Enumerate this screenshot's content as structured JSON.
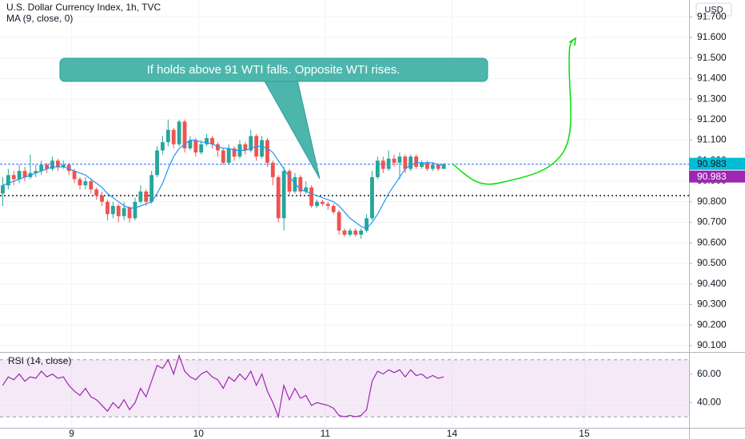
{
  "chart_data": {
    "type": "candlestick",
    "title": "U.S. Dollar Currency Index, 1h, TVC",
    "currency": "USD",
    "up_color": "#26a69a",
    "down_color": "#ef5350",
    "x": [
      0.5,
      1.5,
      2.5,
      3.5,
      4.5,
      5.5,
      6.5,
      7.5,
      8.5,
      9.5,
      10.5,
      11.5,
      12.5,
      13.5,
      14.5,
      15.5,
      16.5,
      17.5,
      18.5,
      19.5,
      20.5,
      21.5,
      22.5,
      23.5,
      24.5,
      25.5,
      26.5,
      27.5,
      28.5,
      29.5,
      30.5,
      31.5,
      32.5,
      33.5,
      34.5,
      35.5,
      36.5,
      37.5,
      38.5,
      39.5,
      40.5,
      41.5,
      42.5,
      43.5,
      44.5,
      45.5,
      46.5,
      47.5,
      48.5,
      49.5,
      50.5,
      51.5,
      52.5,
      53.5,
      54.5,
      55.5,
      56.5,
      57.5,
      58.5,
      59.5,
      60.5,
      61.5,
      62.5,
      63.5,
      64.5,
      65.5,
      66.5,
      67.5,
      68.5,
      69.5,
      70.5,
      71.5,
      72.5,
      73.5,
      74.5,
      75.5,
      76.5,
      77.5,
      78.5,
      79.5,
      80.5
    ],
    "open": [
      90.84,
      90.88,
      90.93,
      90.91,
      90.95,
      90.92,
      90.94,
      90.95,
      90.98,
      90.96,
      91.0,
      90.97,
      90.98,
      90.95,
      90.91,
      90.88,
      90.9,
      90.86,
      90.83,
      90.8,
      90.74,
      90.78,
      90.73,
      90.77,
      90.72,
      90.8,
      90.85,
      90.8,
      90.93,
      91.05,
      91.09,
      91.15,
      91.08,
      91.19,
      91.06,
      91.1,
      91.04,
      91.08,
      91.11,
      91.08,
      91.05,
      90.99,
      91.06,
      91.02,
      91.08,
      91.05,
      91.12,
      91.02,
      91.1,
      90.99,
      90.92,
      90.72,
      90.95,
      90.85,
      90.92,
      90.85,
      90.87,
      90.78,
      90.8,
      90.79,
      90.78,
      90.75,
      90.66,
      90.64,
      90.66,
      90.64,
      90.66,
      90.72,
      90.92,
      91.0,
      90.96,
      91.01,
      90.99,
      91.02,
      90.96,
      91.02,
      90.97,
      90.99,
      90.96,
      90.98,
      90.96
    ],
    "high": [
      90.92,
      90.96,
      90.95,
      90.98,
      90.97,
      91.03,
      90.98,
      91.0,
      90.99,
      91.02,
      91.01,
      91.0,
      90.99,
      90.96,
      90.92,
      90.92,
      90.91,
      90.87,
      90.85,
      90.81,
      90.8,
      90.79,
      90.8,
      90.78,
      90.82,
      90.88,
      90.86,
      90.95,
      91.07,
      91.12,
      91.2,
      91.16,
      91.2,
      91.2,
      91.12,
      91.11,
      91.1,
      91.13,
      91.12,
      91.09,
      91.06,
      91.08,
      91.07,
      91.1,
      91.09,
      91.15,
      91.13,
      91.12,
      91.11,
      91.0,
      90.93,
      90.97,
      90.96,
      90.94,
      90.93,
      90.9,
      90.88,
      90.81,
      90.81,
      90.8,
      90.79,
      90.76,
      90.67,
      90.67,
      90.67,
      90.67,
      90.74,
      90.95,
      91.02,
      91.02,
      91.05,
      91.03,
      91.04,
      91.03,
      91.03,
      91.03,
      91.0,
      91.0,
      90.99,
      90.99,
      90.99
    ],
    "low": [
      90.78,
      90.86,
      90.88,
      90.89,
      90.9,
      90.91,
      90.92,
      90.93,
      90.94,
      90.95,
      90.95,
      90.96,
      90.93,
      90.89,
      90.86,
      90.86,
      90.84,
      90.81,
      90.78,
      90.71,
      90.72,
      90.7,
      90.71,
      90.7,
      90.71,
      90.79,
      90.78,
      90.79,
      90.92,
      91.03,
      91.07,
      91.06,
      91.07,
      91.04,
      91.05,
      91.02,
      91.03,
      91.07,
      91.06,
      91.02,
      90.98,
      90.98,
      91.0,
      91.01,
      91.03,
      91.04,
      91.0,
      91.01,
      90.97,
      90.88,
      90.7,
      90.66,
      90.83,
      90.84,
      90.83,
      90.84,
      90.77,
      90.77,
      90.78,
      90.76,
      90.74,
      90.64,
      90.63,
      90.63,
      90.63,
      90.62,
      90.65,
      90.71,
      90.91,
      90.94,
      90.95,
      90.97,
      90.91,
      90.94,
      90.95,
      90.96,
      90.96,
      90.95,
      90.95,
      90.95,
      90.96
    ],
    "close": [
      90.88,
      90.93,
      90.91,
      90.95,
      90.92,
      90.94,
      90.95,
      90.98,
      90.96,
      91.0,
      90.97,
      90.98,
      90.95,
      90.91,
      90.88,
      90.9,
      90.86,
      90.83,
      90.8,
      90.74,
      90.78,
      90.73,
      90.77,
      90.72,
      90.8,
      90.85,
      90.8,
      90.93,
      91.05,
      91.09,
      91.15,
      91.08,
      91.19,
      91.06,
      91.1,
      91.04,
      91.08,
      91.11,
      91.08,
      91.05,
      90.99,
      91.06,
      91.02,
      91.08,
      91.05,
      91.12,
      91.02,
      91.1,
      90.99,
      90.92,
      90.72,
      90.95,
      90.85,
      90.92,
      90.85,
      90.87,
      90.78,
      90.8,
      90.79,
      90.78,
      90.75,
      90.66,
      90.64,
      90.66,
      90.64,
      90.66,
      90.72,
      90.92,
      91.0,
      90.96,
      91.01,
      90.99,
      91.02,
      90.96,
      91.02,
      90.97,
      90.99,
      90.96,
      90.98,
      90.96,
      90.983
    ],
    "ma": {
      "name": "MA (9, close, 0)",
      "color": "#2196f3",
      "values": [
        90.88,
        90.89,
        90.9,
        90.91,
        90.92,
        90.93,
        90.94,
        90.95,
        90.96,
        90.97,
        90.97,
        90.97,
        90.96,
        90.95,
        90.94,
        90.93,
        90.91,
        90.89,
        90.87,
        90.84,
        90.82,
        90.8,
        90.78,
        90.77,
        90.77,
        90.78,
        90.79,
        90.8,
        90.84,
        90.89,
        90.96,
        91.02,
        91.06,
        91.08,
        91.1,
        91.1,
        91.09,
        91.09,
        91.08,
        91.07,
        91.06,
        91.06,
        91.05,
        91.05,
        91.05,
        91.06,
        91.07,
        91.07,
        91.06,
        91.04,
        91.0,
        90.96,
        90.92,
        90.89,
        90.86,
        90.85,
        90.84,
        90.83,
        90.82,
        90.81,
        90.8,
        90.78,
        90.75,
        90.72,
        90.7,
        90.68,
        90.67,
        90.7,
        90.74,
        90.79,
        90.84,
        90.88,
        90.92,
        90.96,
        90.98,
        90.99,
        90.99,
        90.99,
        90.99,
        90.98,
        90.98
      ]
    },
    "xlim": [
      0,
      125
    ],
    "xticks": [
      {
        "value": 13,
        "label": "9"
      },
      {
        "value": 36,
        "label": "10"
      },
      {
        "value": 59,
        "label": "11"
      },
      {
        "value": 82,
        "label": "14"
      },
      {
        "value": 106,
        "label": "15"
      }
    ],
    "ylim": [
      90.069,
      91.782
    ],
    "yticks": [
      {
        "value": 90.1,
        "label": "90.100"
      },
      {
        "value": 90.2,
        "label": "90.200"
      },
      {
        "value": 90.3,
        "label": "90.300"
      },
      {
        "value": 90.4,
        "label": "90.400"
      },
      {
        "value": 90.5,
        "label": "90.500"
      },
      {
        "value": 90.6,
        "label": "90.600"
      },
      {
        "value": 90.7,
        "label": "90.700"
      },
      {
        "value": 90.8,
        "label": "90.800"
      },
      {
        "value": 90.9,
        "label": "90.900"
      },
      {
        "value": 91.0,
        "label": "91.000"
      },
      {
        "value": 91.1,
        "label": "91.100"
      },
      {
        "value": 91.2,
        "label": "91.200"
      },
      {
        "value": 91.3,
        "label": "91.300"
      },
      {
        "value": 91.4,
        "label": "91.400"
      },
      {
        "value": 91.5,
        "label": "91.500"
      },
      {
        "value": 91.6,
        "label": "91.600"
      },
      {
        "value": 91.7,
        "label": "91.700"
      }
    ],
    "price_line": {
      "value": 90.983,
      "color": "#2962ff",
      "label_color": "#00bcd4"
    },
    "support_line": {
      "value": 90.83,
      "color": "#131722"
    },
    "annotation": "If holds above 91 WTI falls. Opposite WTI rises.",
    "rsi": {
      "name": "RSI (14, close)",
      "color": "#9c27b0",
      "values": [
        52,
        58,
        56,
        60,
        55,
        58,
        57,
        62,
        58,
        60,
        57,
        58,
        52,
        48,
        45,
        50,
        44,
        42,
        38,
        34,
        40,
        36,
        42,
        35,
        40,
        50,
        44,
        55,
        66,
        64,
        70,
        60,
        73,
        62,
        58,
        56,
        60,
        62,
        58,
        56,
        50,
        58,
        55,
        60,
        56,
        62,
        52,
        60,
        48,
        40,
        30,
        52,
        42,
        50,
        43,
        45,
        38,
        40,
        39,
        38,
        36,
        31,
        30,
        31,
        30,
        31,
        35,
        55,
        62,
        60,
        63,
        61,
        63,
        58,
        63,
        59,
        60,
        57,
        59,
        57,
        58
      ],
      "ylim": [
        22.3,
        74.9
      ],
      "yticks": [
        {
          "value": 40,
          "label": "40.00"
        },
        {
          "value": 60,
          "label": "60.00"
        }
      ],
      "bands": [
        30,
        70
      ]
    }
  }
}
